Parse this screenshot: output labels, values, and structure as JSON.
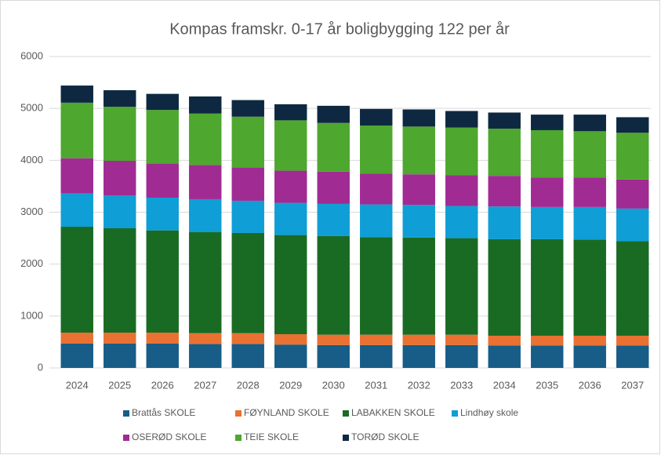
{
  "chart_data": {
    "type": "stacked_bar",
    "title": "Kompas framskr. 0-17 år boligbygging 122 per år",
    "categories": [
      "2024",
      "2025",
      "2026",
      "2027",
      "2028",
      "2029",
      "2030",
      "2031",
      "2032",
      "2033",
      "2034",
      "2035",
      "2036",
      "2037"
    ],
    "series": [
      {
        "name": "Brattås SKOLE",
        "color": "#175d87",
        "values": [
          470,
          470,
          470,
          460,
          460,
          450,
          440,
          440,
          440,
          440,
          430,
          430,
          430,
          430
        ]
      },
      {
        "name": "FØYNLAND SKOLE",
        "color": "#e97132",
        "values": [
          210,
          210,
          210,
          210,
          210,
          200,
          200,
          200,
          200,
          200,
          190,
          190,
          190,
          190
        ]
      },
      {
        "name": "LABAKKEN SKOLE",
        "color": "#196b24",
        "values": [
          2040,
          2010,
          1970,
          1950,
          1930,
          1910,
          1900,
          1880,
          1870,
          1860,
          1860,
          1860,
          1850,
          1820
        ]
      },
      {
        "name": "Lindhøy skole",
        "color": "#0f9ed5",
        "values": [
          640,
          630,
          630,
          630,
          620,
          620,
          620,
          630,
          630,
          620,
          630,
          620,
          630,
          630
        ]
      },
      {
        "name": "OSERØD SKOLE",
        "color": "#a02b93",
        "values": [
          680,
          670,
          660,
          660,
          640,
          620,
          620,
          590,
          590,
          590,
          590,
          570,
          570,
          560
        ]
      },
      {
        "name": "TEIE SKOLE",
        "color": "#4ea72e",
        "values": [
          1070,
          1040,
          1030,
          990,
          980,
          970,
          940,
          930,
          920,
          920,
          910,
          910,
          890,
          900
        ]
      },
      {
        "name": "TORØD SKOLE",
        "color": "#0e2841",
        "values": [
          330,
          320,
          310,
          330,
          320,
          310,
          330,
          320,
          330,
          320,
          310,
          300,
          320,
          300
        ]
      }
    ],
    "ylim": [
      0,
      6000
    ],
    "yticks": [
      0,
      1000,
      2000,
      3000,
      4000,
      5000,
      6000
    ],
    "grid": true,
    "legend": "bottom"
  }
}
